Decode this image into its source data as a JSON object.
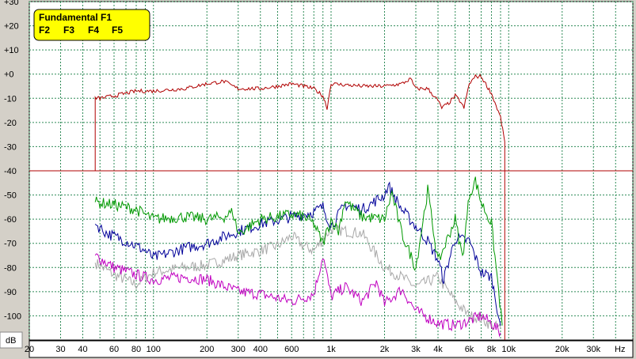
{
  "chart_data": {
    "type": "line",
    "xscale": "log",
    "xlim": [
      20,
      50000
    ],
    "ylim": [
      -110,
      30
    ],
    "x_tick_labels": [
      "20",
      "30",
      "40",
      "60",
      "80",
      "100",
      "200",
      "300",
      "400",
      "600",
      "1k",
      "2k",
      "3k",
      "4k",
      "6k",
      "8k",
      "10k",
      "20k",
      "30k"
    ],
    "x_ticks": [
      20,
      30,
      40,
      60,
      80,
      100,
      200,
      300,
      400,
      600,
      1000,
      2000,
      3000,
      4000,
      6000,
      8000,
      10000,
      20000,
      30000
    ],
    "x_unit": "Hz",
    "y_ticks": [
      30,
      20,
      10,
      0,
      -10,
      -20,
      -30,
      -40,
      -50,
      -60,
      -70,
      -80,
      -90,
      -100
    ],
    "y_tick_labels": [
      "+30",
      "+20",
      "+10",
      "+0",
      "-10",
      "-20",
      "-30",
      "-40",
      "-50",
      "-60",
      "-70",
      "-80",
      "-90",
      "-100"
    ],
    "y_unit": "dB",
    "grid": true,
    "legend_position": "top-left",
    "reference_line": {
      "y": -40,
      "color": "#b00000"
    },
    "series": [
      {
        "name": "Fundamental F1",
        "color": "#b00000",
        "points": [
          [
            47,
            -40
          ],
          [
            47,
            -10
          ],
          [
            50,
            -10
          ],
          [
            60,
            -9
          ],
          [
            80,
            -7
          ],
          [
            100,
            -7
          ],
          [
            150,
            -6
          ],
          [
            200,
            -4
          ],
          [
            250,
            -3
          ],
          [
            280,
            -5
          ],
          [
            300,
            -6
          ],
          [
            400,
            -6
          ],
          [
            500,
            -5
          ],
          [
            600,
            -4
          ],
          [
            700,
            -5
          ],
          [
            800,
            -6
          ],
          [
            900,
            -9
          ],
          [
            950,
            -14
          ],
          [
            1000,
            -4
          ],
          [
            1500,
            -5
          ],
          [
            2000,
            -5
          ],
          [
            2500,
            -4
          ],
          [
            2800,
            -2
          ],
          [
            3000,
            -6
          ],
          [
            3500,
            -6
          ],
          [
            4000,
            -11
          ],
          [
            4200,
            -14
          ],
          [
            4600,
            -12
          ],
          [
            5000,
            -9
          ],
          [
            5300,
            -11
          ],
          [
            5600,
            -14
          ],
          [
            6000,
            -4
          ],
          [
            6500,
            -1
          ],
          [
            7000,
            -1
          ],
          [
            8000,
            -8
          ],
          [
            9000,
            -18
          ],
          [
            9500,
            -28
          ],
          [
            9500,
            -110
          ]
        ]
      },
      {
        "name": "F2",
        "color": "#009900",
        "points": [
          [
            47,
            -53
          ],
          [
            60,
            -54
          ],
          [
            80,
            -56
          ],
          [
            100,
            -60
          ],
          [
            150,
            -59
          ],
          [
            200,
            -60
          ],
          [
            250,
            -59
          ],
          [
            280,
            -57
          ],
          [
            300,
            -66
          ],
          [
            400,
            -60
          ],
          [
            500,
            -59
          ],
          [
            600,
            -58
          ],
          [
            700,
            -59
          ],
          [
            800,
            -62
          ],
          [
            900,
            -70
          ],
          [
            1000,
            -60
          ],
          [
            1100,
            -65
          ],
          [
            1200,
            -52
          ],
          [
            1300,
            -55
          ],
          [
            1500,
            -59
          ],
          [
            2000,
            -60
          ],
          [
            2200,
            -49
          ],
          [
            2500,
            -66
          ],
          [
            3000,
            -80
          ],
          [
            3500,
            -48
          ],
          [
            4000,
            -78
          ],
          [
            5000,
            -60
          ],
          [
            5500,
            -76
          ],
          [
            6000,
            -50
          ],
          [
            6500,
            -44
          ],
          [
            7000,
            -53
          ],
          [
            8000,
            -62
          ],
          [
            8500,
            -80
          ],
          [
            9200,
            -104
          ]
        ]
      },
      {
        "name": "F3",
        "color": "#000099",
        "points": [
          [
            47,
            -62
          ],
          [
            55,
            -66
          ],
          [
            70,
            -69
          ],
          [
            90,
            -73
          ],
          [
            100,
            -76
          ],
          [
            150,
            -72
          ],
          [
            200,
            -70
          ],
          [
            300,
            -65
          ],
          [
            400,
            -62
          ],
          [
            600,
            -59
          ],
          [
            800,
            -57
          ],
          [
            900,
            -55
          ],
          [
            1000,
            -63
          ],
          [
            1200,
            -54
          ],
          [
            1500,
            -56
          ],
          [
            2000,
            -50
          ],
          [
            2100,
            -46
          ],
          [
            2500,
            -56
          ],
          [
            3000,
            -63
          ],
          [
            3500,
            -69
          ],
          [
            4000,
            -77
          ],
          [
            4300,
            -85
          ],
          [
            5000,
            -68
          ],
          [
            6000,
            -69
          ],
          [
            7000,
            -82
          ],
          [
            8000,
            -84
          ],
          [
            9000,
            -104
          ]
        ]
      },
      {
        "name": "F4",
        "color": "#c000c0",
        "points": [
          [
            47,
            -75
          ],
          [
            60,
            -80
          ],
          [
            80,
            -83
          ],
          [
            100,
            -85
          ],
          [
            150,
            -84
          ],
          [
            200,
            -85
          ],
          [
            300,
            -90
          ],
          [
            400,
            -91
          ],
          [
            600,
            -94
          ],
          [
            800,
            -91
          ],
          [
            900,
            -75
          ],
          [
            1000,
            -92
          ],
          [
            1200,
            -88
          ],
          [
            1500,
            -94
          ],
          [
            1800,
            -86
          ],
          [
            2000,
            -95
          ],
          [
            2500,
            -89
          ],
          [
            3000,
            -98
          ],
          [
            4000,
            -103
          ],
          [
            5000,
            -104
          ],
          [
            6000,
            -102
          ],
          [
            7000,
            -100
          ],
          [
            8000,
            -103
          ],
          [
            9000,
            -107
          ]
        ]
      },
      {
        "name": "F5",
        "color": "#a8a8a8",
        "points": [
          [
            47,
            -78
          ],
          [
            60,
            -83
          ],
          [
            80,
            -87
          ],
          [
            100,
            -82
          ],
          [
            150,
            -80
          ],
          [
            200,
            -79
          ],
          [
            250,
            -77
          ],
          [
            300,
            -75
          ],
          [
            400,
            -73
          ],
          [
            500,
            -71
          ],
          [
            600,
            -67
          ],
          [
            700,
            -71
          ],
          [
            800,
            -73
          ],
          [
            1000,
            -64
          ],
          [
            1500,
            -66
          ],
          [
            2000,
            -80
          ],
          [
            2500,
            -84
          ],
          [
            3000,
            -88
          ],
          [
            4000,
            -84
          ],
          [
            5000,
            -94
          ],
          [
            6000,
            -100
          ],
          [
            7000,
            -101
          ],
          [
            8000,
            -104
          ],
          [
            9000,
            -105
          ]
        ]
      }
    ]
  }
}
